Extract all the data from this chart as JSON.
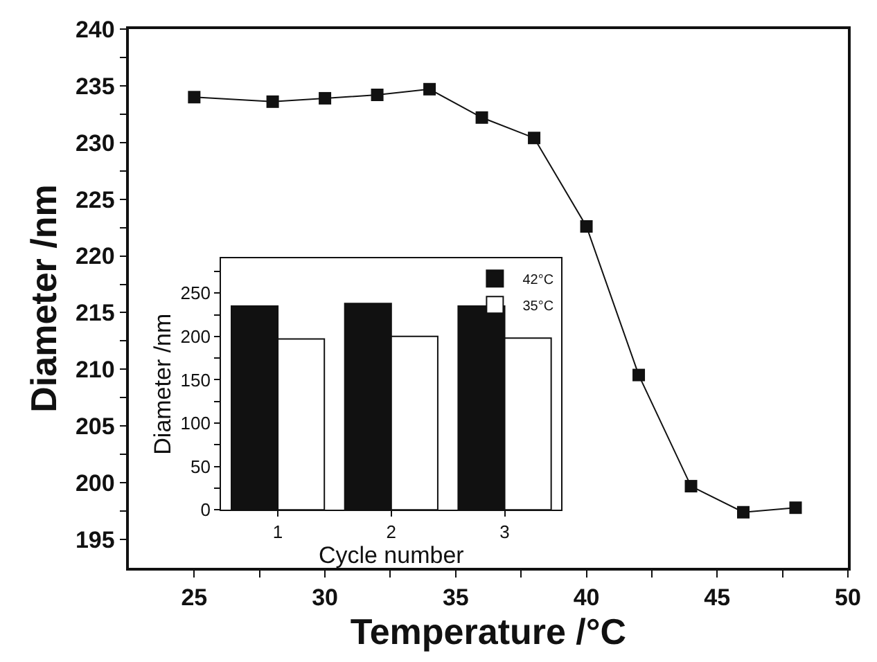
{
  "chart_data": [
    {
      "type": "line",
      "xlabel": "Temperature /°C",
      "ylabel": "Diameter /nm",
      "marker": "square",
      "x": [
        25,
        28,
        30,
        32,
        34,
        36,
        38,
        40,
        42,
        44,
        46,
        48
      ],
      "series": [
        {
          "color": "#111111",
          "values": [
            234.0,
            233.6,
            233.9,
            234.2,
            234.7,
            232.2,
            230.4,
            222.6,
            209.5,
            199.7,
            197.4,
            197.8
          ]
        }
      ],
      "xlim": [
        22.5,
        50
      ],
      "xticks": [
        25,
        {
          "value": 27.5,
          "label": null
        },
        30,
        {
          "value": 32.5,
          "label": null
        },
        35,
        {
          "value": 37.5,
          "label": null
        },
        40,
        {
          "value": 42.5,
          "label": null
        },
        45,
        {
          "value": 47.5,
          "label": null
        },
        50
      ],
      "ylim": [
        192.5,
        240
      ],
      "yticks": [
        195,
        {
          "value": 197.5,
          "label": null
        },
        200,
        {
          "value": 202.5,
          "label": null
        },
        205,
        {
          "value": 207.5,
          "label": null
        },
        210,
        {
          "value": 212.5,
          "label": null
        },
        215,
        {
          "value": 217.5,
          "label": null
        },
        220,
        {
          "value": 222.5,
          "label": null
        },
        225,
        {
          "value": 227.5,
          "label": null
        },
        230,
        {
          "value": 232.5,
          "label": null
        },
        235,
        {
          "value": 237.5,
          "label": null
        },
        240
      ],
      "legend": false
    },
    {
      "type": "bar",
      "xlabel": "Cycle number",
      "ylabel": "Diameter /nm",
      "categories": [
        "1",
        "2",
        "3"
      ],
      "series": [
        {
          "name": "42°C",
          "color": "#111111",
          "values": [
            235,
            238,
            235
          ]
        },
        {
          "name": "35°C",
          "color": "#ffffff",
          "values": [
            197,
            200,
            198
          ]
        }
      ],
      "ylim": [
        0,
        290
      ],
      "yticks": [
        0,
        {
          "value": 25,
          "label": null
        },
        50,
        {
          "value": 75,
          "label": null
        },
        100,
        {
          "value": 125,
          "label": null
        },
        150,
        {
          "value": 175,
          "label": null
        },
        200,
        {
          "value": 225,
          "label": null
        },
        250,
        {
          "value": 275,
          "label": null
        }
      ],
      "legend": "top right"
    }
  ]
}
